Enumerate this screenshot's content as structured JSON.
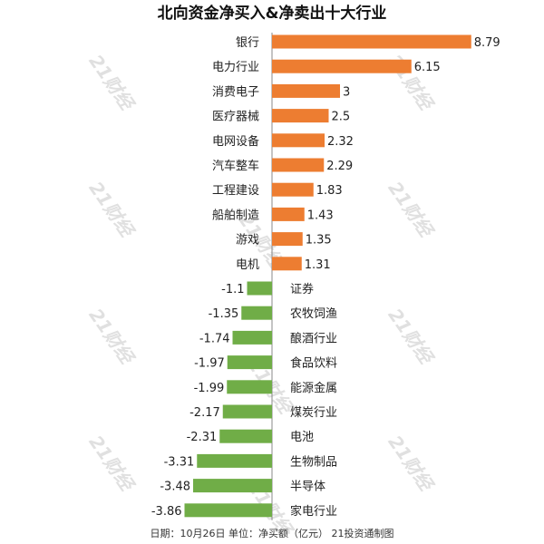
{
  "watermark": "21财经",
  "footer": "日期：10月26日 单位：净买额（亿元） 21投资通制图",
  "colors": {
    "positive": "#ed7d31",
    "negative": "#70ad47",
    "axis": "#888888",
    "text": "#222222"
  },
  "chart_data": {
    "type": "bar",
    "orientation": "horizontal",
    "title": "北向资金净买入&净卖出十大行业",
    "categories": [
      "银行",
      "电力行业",
      "消费电子",
      "医疗器械",
      "电网设备",
      "汽车整车",
      "工程建设",
      "船舶制造",
      "游戏",
      "电机",
      "证券",
      "农牧饲渔",
      "酿酒行业",
      "食品饮料",
      "能源金属",
      "煤炭行业",
      "电池",
      "生物制品",
      "半导体",
      "家电行业"
    ],
    "values": [
      8.79,
      6.15,
      3,
      2.5,
      2.32,
      2.29,
      1.83,
      1.43,
      1.35,
      1.31,
      -1.1,
      -1.35,
      -1.74,
      -1.97,
      -1.99,
      -2.17,
      -2.31,
      -3.31,
      -3.48,
      -3.86
    ],
    "value_labels": [
      "8.79",
      "6.15",
      "3",
      "2.5",
      "2.32",
      "2.29",
      "1.83",
      "1.43",
      "1.35",
      "1.31",
      "-1.1",
      "-1.35",
      "-1.74",
      "-1.97",
      "-1.99",
      "-2.17",
      "-2.31",
      "-3.31",
      "-3.48",
      "-3.86"
    ],
    "grid": false,
    "legend": "none"
  }
}
